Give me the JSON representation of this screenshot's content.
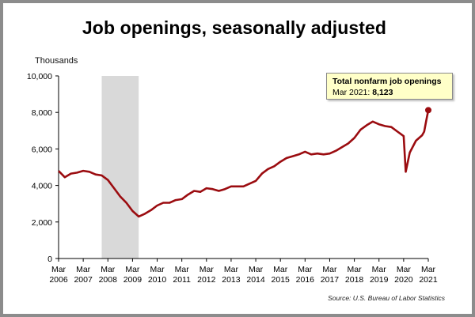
{
  "chart_data": {
    "type": "line",
    "title": "Job openings, seasonally adjusted",
    "ylabel": "Thousands",
    "xlabel": "",
    "ylim": [
      0,
      10000
    ],
    "yticks": [
      "0",
      "2,000",
      "4,000",
      "6,000",
      "8,000",
      "10,000"
    ],
    "yticks_values": [
      0,
      2000,
      4000,
      6000,
      8000,
      10000
    ],
    "xticks": [
      {
        "top": "Mar",
        "bottom": "2006"
      },
      {
        "top": "Mar",
        "bottom": "2007"
      },
      {
        "top": "Mar",
        "bottom": "2008"
      },
      {
        "top": "Mar",
        "bottom": "2009"
      },
      {
        "top": "Mar",
        "bottom": "2010"
      },
      {
        "top": "Mar",
        "bottom": "2011"
      },
      {
        "top": "Mar",
        "bottom": "2012"
      },
      {
        "top": "Mar",
        "bottom": "2013"
      },
      {
        "top": "Mar",
        "bottom": "2014"
      },
      {
        "top": "Mar",
        "bottom": "2015"
      },
      {
        "top": "Mar",
        "bottom": "2016"
      },
      {
        "top": "Mar",
        "bottom": "2017"
      },
      {
        "top": "Mar",
        "bottom": "2018"
      },
      {
        "top": "Mar",
        "bottom": "2019"
      },
      {
        "top": "Mar",
        "bottom": "2020"
      },
      {
        "top": "Mar",
        "bottom": "2021"
      }
    ],
    "xlim": [
      "2006-03",
      "2021-03"
    ],
    "recession": {
      "start": "2007-12",
      "end": "2009-06"
    },
    "series": [
      {
        "color": "#9b0c10",
        "points": [
          [
            "2006-03",
            4800
          ],
          [
            "2006-06",
            4450
          ],
          [
            "2006-09",
            4650
          ],
          [
            "2006-12",
            4700
          ],
          [
            "2007-03",
            4800
          ],
          [
            "2007-06",
            4750
          ],
          [
            "2007-09",
            4600
          ],
          [
            "2007-12",
            4550
          ],
          [
            "2008-03",
            4300
          ],
          [
            "2008-06",
            3850
          ],
          [
            "2008-09",
            3400
          ],
          [
            "2008-12",
            3050
          ],
          [
            "2009-03",
            2600
          ],
          [
            "2009-06",
            2300
          ],
          [
            "2009-09",
            2450
          ],
          [
            "2009-12",
            2650
          ],
          [
            "2010-03",
            2900
          ],
          [
            "2010-06",
            3050
          ],
          [
            "2010-09",
            3050
          ],
          [
            "2010-12",
            3200
          ],
          [
            "2011-03",
            3250
          ],
          [
            "2011-06",
            3500
          ],
          [
            "2011-09",
            3700
          ],
          [
            "2011-12",
            3650
          ],
          [
            "2012-03",
            3850
          ],
          [
            "2012-06",
            3800
          ],
          [
            "2012-09",
            3700
          ],
          [
            "2012-12",
            3800
          ],
          [
            "2013-03",
            3950
          ],
          [
            "2013-06",
            3950
          ],
          [
            "2013-09",
            3950
          ],
          [
            "2013-12",
            4100
          ],
          [
            "2014-03",
            4250
          ],
          [
            "2014-06",
            4650
          ],
          [
            "2014-09",
            4900
          ],
          [
            "2014-12",
            5050
          ],
          [
            "2015-03",
            5300
          ],
          [
            "2015-06",
            5500
          ],
          [
            "2015-09",
            5600
          ],
          [
            "2015-12",
            5700
          ],
          [
            "2016-03",
            5850
          ],
          [
            "2016-06",
            5700
          ],
          [
            "2016-09",
            5750
          ],
          [
            "2016-12",
            5700
          ],
          [
            "2017-03",
            5750
          ],
          [
            "2017-06",
            5900
          ],
          [
            "2017-09",
            6100
          ],
          [
            "2017-12",
            6300
          ],
          [
            "2018-03",
            6600
          ],
          [
            "2018-06",
            7050
          ],
          [
            "2018-09",
            7300
          ],
          [
            "2018-12",
            7500
          ],
          [
            "2019-03",
            7350
          ],
          [
            "2019-06",
            7250
          ],
          [
            "2019-09",
            7200
          ],
          [
            "2019-12",
            6950
          ],
          [
            "2020-03",
            6700
          ],
          [
            "2020-04",
            4750
          ],
          [
            "2020-06",
            5800
          ],
          [
            "2020-09",
            6450
          ],
          [
            "2020-12",
            6750
          ],
          [
            "2021-01",
            6950
          ],
          [
            "2021-02",
            7550
          ],
          [
            "2021-03",
            8123
          ]
        ]
      }
    ],
    "grid": false,
    "annotation": {
      "title": "Total nonfarm job openings",
      "label": "Mar 2021:",
      "value": "8,123"
    },
    "source": "Source: U.S. Bureau of Labor Statistics"
  }
}
